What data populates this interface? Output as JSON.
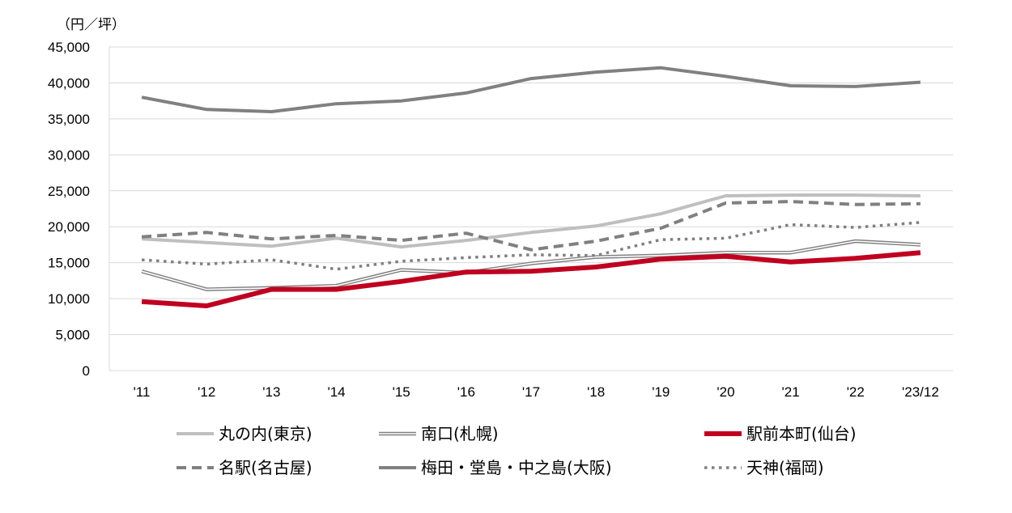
{
  "chart_data": {
    "type": "line",
    "unit_label": "（円／坪）",
    "x": [
      "'11",
      "'12",
      "'13",
      "'14",
      "'15",
      "'16",
      "'17",
      "'18",
      "'19",
      "'20",
      "'21",
      "'22",
      "'23/12"
    ],
    "y_ticks": [
      "0",
      "5,000",
      "10,000",
      "15,000",
      "20,000",
      "25,000",
      "30,000",
      "35,000",
      "40,000",
      "45,000"
    ],
    "ylim": [
      0,
      45000
    ],
    "grid": "horizontal",
    "legend_position": "bottom",
    "series": [
      {
        "name": "丸の内(東京)",
        "style": "solid-light",
        "color": "#bfbfbf",
        "values": [
          18300,
          17800,
          17300,
          18400,
          17200,
          18100,
          19200,
          20100,
          21800,
          24300,
          24400,
          24400,
          24300
        ]
      },
      {
        "name": "南口(札幌)",
        "style": "double",
        "color": "#808080",
        "values": [
          13800,
          11300,
          11500,
          11800,
          14000,
          13600,
          14900,
          15800,
          16000,
          16400,
          16400,
          18000,
          17500
        ]
      },
      {
        "name": "駅前本町(仙台)",
        "style": "solid-thick",
        "color": "#c00020",
        "values": [
          9600,
          9000,
          11300,
          11300,
          12400,
          13700,
          13800,
          14400,
          15500,
          15900,
          15100,
          15600,
          16400
        ]
      },
      {
        "name": "名駅(名古屋)",
        "style": "dashed",
        "color": "#808080",
        "values": [
          18600,
          19200,
          18300,
          18800,
          18100,
          19100,
          16800,
          18000,
          19800,
          23300,
          23500,
          23100,
          23200
        ]
      },
      {
        "name": "梅田・堂島・中之島(大阪)",
        "style": "solid-dark",
        "color": "#808080",
        "values": [
          38000,
          36300,
          36000,
          37100,
          37500,
          38600,
          40600,
          41500,
          42100,
          40900,
          39600,
          39500,
          40100
        ]
      },
      {
        "name": "天神(福岡)",
        "style": "dotted",
        "color": "#808080",
        "values": [
          15400,
          14800,
          15400,
          14100,
          15200,
          15700,
          16100,
          16000,
          18200,
          18400,
          20300,
          19900,
          20600
        ]
      }
    ]
  }
}
